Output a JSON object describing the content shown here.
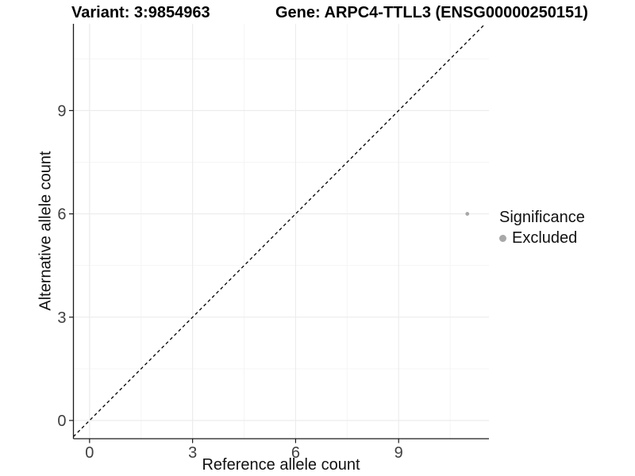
{
  "header": {
    "variant_title": "Variant: 3:9854963",
    "gene_title": "Gene: ARPC4-TTLL3 (ENSG00000250151)"
  },
  "legend": {
    "title": "Significance",
    "items": [
      {
        "label": "Excluded",
        "color": "#a8a8a8"
      }
    ]
  },
  "colors": {
    "grid_major": "#ececec",
    "grid_minor": "#f5f5f5",
    "axis_line": "#1a1a1a",
    "tick_label": "#404040",
    "identity_line": "#000000",
    "point": "#a8a8a8",
    "background": "#ffffff"
  },
  "chart_data": {
    "type": "scatter",
    "title_left": "Variant: 3:9854963",
    "title_right": "Gene: ARPC4-TTLL3 (ENSG00000250151)",
    "xlabel": "Reference allele count",
    "ylabel": "Alternative allele count",
    "xlim": [
      -0.47,
      11.63
    ],
    "ylim": [
      -0.53,
      11.52
    ],
    "x_major_ticks": [
      0,
      3,
      6,
      9
    ],
    "y_major_ticks": [
      0,
      3,
      6,
      9
    ],
    "x_minor_ticks": [
      1.5,
      4.5,
      7.5,
      10.5
    ],
    "y_minor_ticks": [
      1.5,
      4.5,
      7.5,
      10.5
    ],
    "grid": true,
    "legend_position": "right",
    "legend_title": "Significance",
    "identity_line": {
      "show": true,
      "style": "dashed",
      "slope": 1,
      "intercept": 0
    },
    "series": [
      {
        "name": "Excluded",
        "color": "#a8a8a8",
        "points": [
          {
            "x": 11,
            "y": 6
          }
        ]
      }
    ]
  }
}
